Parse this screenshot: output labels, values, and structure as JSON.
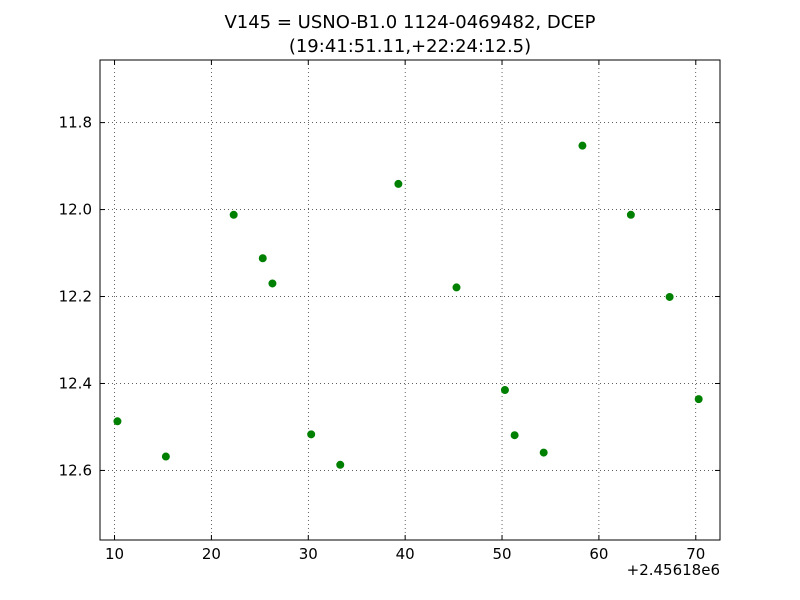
{
  "chart_data": {
    "type": "scatter",
    "title": "V145 = USNO-B1.0 1124-0469482, DCEP",
    "subtitle": "(19:41:51.11,+22:24:12.5)",
    "xlabel": "",
    "ylabel": "",
    "x_offset_label": "+2.45618e6",
    "xlim": [
      8.5,
      72.5
    ],
    "ylim": [
      12.76,
      11.656
    ],
    "y_inverted": true,
    "grid": true,
    "x_ticks": [
      10,
      20,
      30,
      40,
      50,
      60,
      70
    ],
    "x_tick_labels": [
      "10",
      "20",
      "30",
      "40",
      "50",
      "60",
      "70"
    ],
    "y_ticks": [
      11.8,
      12.0,
      12.2,
      12.4,
      12.6
    ],
    "y_tick_labels": [
      "11.8",
      "12.0",
      "12.2",
      "12.4",
      "12.6"
    ],
    "series": [
      {
        "color": "#008000",
        "points": [
          {
            "x": 10.3,
            "y": 12.487
          },
          {
            "x": 15.3,
            "y": 12.568
          },
          {
            "x": 22.3,
            "y": 12.012
          },
          {
            "x": 25.3,
            "y": 12.112
          },
          {
            "x": 26.3,
            "y": 12.17
          },
          {
            "x": 30.3,
            "y": 12.517
          },
          {
            "x": 33.3,
            "y": 12.587
          },
          {
            "x": 39.3,
            "y": 11.941
          },
          {
            "x": 45.3,
            "y": 12.179
          },
          {
            "x": 50.3,
            "y": 12.415
          },
          {
            "x": 51.3,
            "y": 12.519
          },
          {
            "x": 54.3,
            "y": 12.559
          },
          {
            "x": 58.3,
            "y": 11.853
          },
          {
            "x": 63.3,
            "y": 12.012
          },
          {
            "x": 67.3,
            "y": 12.201
          },
          {
            "x": 70.3,
            "y": 12.436
          }
        ]
      }
    ]
  }
}
